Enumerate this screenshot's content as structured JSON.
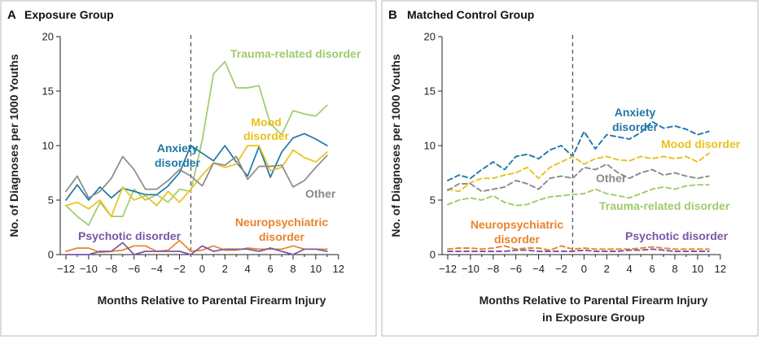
{
  "colors": {
    "anxiety": "#1f78a4",
    "mood": "#e8c21a",
    "other": "#8a8a8a",
    "trauma": "#9fcb6b",
    "neuro": "#e8832a",
    "psychotic": "#7c55a6"
  },
  "chart_data": [
    {
      "type": "line",
      "panel_letter": "A",
      "title": "Exposure Group",
      "xlabel": [
        "Months Relative to Parental Firearm Injury"
      ],
      "ylabel": "No. of Diagnoses per 1000 Youths",
      "xlim": [
        -12.5,
        12
      ],
      "ylim": [
        0,
        20
      ],
      "xticks": [
        -12,
        -10,
        -8,
        -6,
        -4,
        -2,
        0,
        2,
        4,
        6,
        8,
        10,
        12
      ],
      "yticks": [
        0,
        5,
        10,
        15,
        20
      ],
      "reference_line_x": -1,
      "line_style": "solid",
      "x": [
        -12,
        -11,
        -10,
        -9,
        -8,
        -7,
        -6,
        -5,
        -4,
        -3,
        -2,
        -1,
        0,
        1,
        2,
        3,
        4,
        5,
        6,
        7,
        8,
        9,
        10,
        11
      ],
      "series": [
        {
          "name": "Trauma-related disorder",
          "color_key": "trauma",
          "label_lines": [
            "Trauma-related disorder"
          ],
          "values": [
            4.5,
            3.5,
            2.7,
            4.8,
            3.5,
            3.5,
            6.0,
            5.0,
            5.5,
            4.8,
            6.0,
            5.8,
            10.5,
            16.6,
            17.7,
            15.3,
            15.3,
            15.5,
            12.0,
            11.0,
            13.2,
            12.9,
            12.7,
            13.7
          ]
        },
        {
          "name": "Anxiety disorder",
          "color_key": "anxiety",
          "label_lines": [
            "Anxiety",
            "disorder"
          ],
          "values": [
            5.0,
            6.4,
            5.0,
            6.2,
            5.2,
            6.1,
            5.8,
            5.5,
            5.5,
            6.3,
            7.5,
            10.0,
            9.3,
            8.6,
            10.0,
            8.5,
            7.2,
            9.9,
            7.1,
            9.4,
            10.7,
            11.1,
            10.6,
            10.0
          ]
        },
        {
          "name": "Mood disorder",
          "color_key": "mood",
          "label_lines": [
            "Mood",
            "disorder"
          ],
          "values": [
            4.5,
            4.8,
            4.2,
            5.0,
            3.5,
            6.2,
            5.0,
            5.4,
            4.5,
            5.8,
            4.8,
            6.0,
            7.3,
            8.4,
            8.0,
            8.3,
            10.0,
            10.0,
            7.7,
            8.0,
            9.6,
            8.9,
            8.5,
            9.4
          ]
        },
        {
          "name": "Other",
          "color_key": "other",
          "label_lines": [
            "Other"
          ],
          "values": [
            5.8,
            7.2,
            5.2,
            5.8,
            7.0,
            9.0,
            7.8,
            6.0,
            6.0,
            6.8,
            7.8,
            7.2,
            6.3,
            8.4,
            8.2,
            9.0,
            6.9,
            8.1,
            8.1,
            8.2,
            6.2,
            6.8,
            8.0,
            9.1
          ]
        },
        {
          "name": "Neuropsychiatric disorder",
          "color_key": "neuro",
          "label_lines": [
            "Neuropsychiatric",
            "disorder"
          ],
          "values": [
            0.3,
            0.6,
            0.6,
            0.2,
            0.3,
            0.4,
            0.8,
            0.8,
            0.3,
            0.4,
            1.3,
            0.3,
            0.4,
            0.8,
            0.4,
            0.4,
            0.6,
            0.5,
            0.5,
            0.5,
            0.8,
            0.5,
            0.5,
            0.5
          ]
        },
        {
          "name": "Psychotic disorder",
          "color_key": "psychotic",
          "label_lines": [
            "Psychotic disorder"
          ],
          "values": [
            0.0,
            0.0,
            0.0,
            0.3,
            0.3,
            1.1,
            0.0,
            0.3,
            0.3,
            0.3,
            0.3,
            0.0,
            0.8,
            0.3,
            0.5,
            0.5,
            0.5,
            0.3,
            0.6,
            0.3,
            0.0,
            0.5,
            0.5,
            0.3
          ]
        }
      ]
    },
    {
      "type": "line",
      "panel_letter": "B",
      "title": "Matched Control Group",
      "xlabel": [
        "Months Relative to Parental Firearm Injury",
        "in Exposure Group"
      ],
      "ylabel": "No. of Diagnoses per 1000 Youths",
      "xlim": [
        -12.5,
        12
      ],
      "ylim": [
        0,
        20
      ],
      "xticks": [
        -12,
        -10,
        -8,
        -6,
        -4,
        -2,
        0,
        2,
        4,
        6,
        8,
        10,
        12
      ],
      "yticks": [
        0,
        5,
        10,
        15,
        20
      ],
      "reference_line_x": -1,
      "line_style": "dashed",
      "x": [
        -12,
        -11,
        -10,
        -9,
        -8,
        -7,
        -6,
        -5,
        -4,
        -3,
        -2,
        -1,
        0,
        1,
        2,
        3,
        4,
        5,
        6,
        7,
        8,
        9,
        10,
        11
      ],
      "series": [
        {
          "name": "Anxiety disorder",
          "color_key": "anxiety",
          "label_lines": [
            "Anxiety",
            "disorder"
          ],
          "values": [
            6.8,
            7.3,
            7.0,
            7.8,
            8.5,
            7.8,
            9.0,
            9.2,
            8.8,
            9.6,
            10.0,
            9.0,
            11.3,
            9.7,
            11.0,
            10.8,
            10.6,
            11.2,
            12.2,
            11.6,
            11.8,
            11.5,
            11.0,
            11.3
          ]
        },
        {
          "name": "Mood disorder",
          "color_key": "mood",
          "label_lines": [
            "Mood disorder"
          ],
          "values": [
            6.0,
            5.8,
            6.6,
            7.0,
            7.0,
            7.3,
            7.5,
            8.0,
            7.0,
            8.0,
            8.5,
            9.0,
            8.3,
            8.8,
            9.0,
            8.7,
            8.6,
            9.0,
            8.8,
            9.0,
            8.8,
            9.0,
            8.5,
            9.3
          ]
        },
        {
          "name": "Other",
          "color_key": "other",
          "label_lines": [
            "Other"
          ],
          "values": [
            5.9,
            6.5,
            6.5,
            5.8,
            6.0,
            6.2,
            6.8,
            6.5,
            6.0,
            7.0,
            7.2,
            7.0,
            8.0,
            7.8,
            8.3,
            7.5,
            7.0,
            7.5,
            7.8,
            7.3,
            7.5,
            7.2,
            7.0,
            7.2
          ]
        },
        {
          "name": "Trauma-related disorder",
          "color_key": "trauma",
          "label_lines": [
            "Trauma-related disorder"
          ],
          "values": [
            4.6,
            5.0,
            5.2,
            5.0,
            5.4,
            4.8,
            4.5,
            4.6,
            5.0,
            5.3,
            5.4,
            5.5,
            5.6,
            6.0,
            5.6,
            5.4,
            5.2,
            5.6,
            6.0,
            6.2,
            6.0,
            6.3,
            6.4,
            6.4
          ]
        },
        {
          "name": "Neuropsychiatric disorder",
          "color_key": "neuro",
          "label_lines": [
            "Neuropsychiatric",
            "disorder"
          ],
          "values": [
            0.5,
            0.6,
            0.6,
            0.5,
            0.6,
            0.8,
            0.5,
            0.6,
            0.6,
            0.4,
            0.8,
            0.5,
            0.6,
            0.5,
            0.5,
            0.5,
            0.5,
            0.6,
            0.7,
            0.6,
            0.5,
            0.5,
            0.5,
            0.5
          ]
        },
        {
          "name": "Psychotic disorder",
          "color_key": "psychotic",
          "label_lines": [
            "Psychotic disorder"
          ],
          "values": [
            0.3,
            0.3,
            0.3,
            0.3,
            0.3,
            0.3,
            0.4,
            0.4,
            0.3,
            0.3,
            0.3,
            0.3,
            0.4,
            0.3,
            0.3,
            0.3,
            0.4,
            0.4,
            0.5,
            0.4,
            0.3,
            0.3,
            0.3,
            0.3
          ]
        }
      ]
    }
  ]
}
